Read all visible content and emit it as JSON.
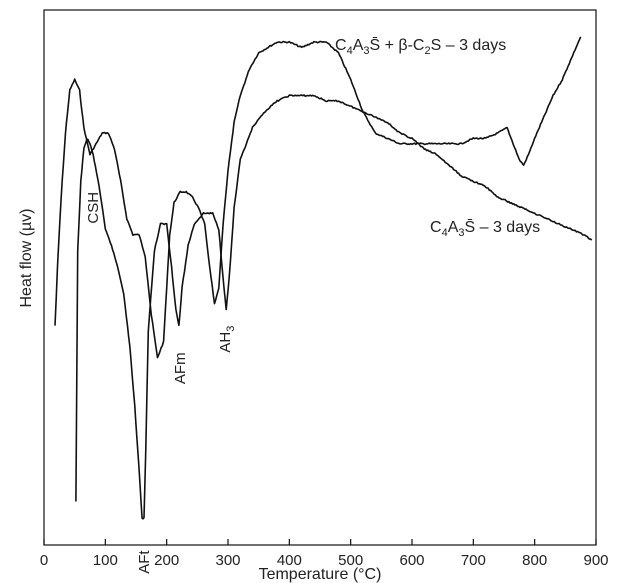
{
  "chart_data": {
    "type": "line",
    "title": "",
    "xlabel": "Temperature (°C)",
    "ylabel": "Heat flow (µv)",
    "xlim": [
      0,
      900
    ],
    "ylim": [
      0,
      100
    ],
    "x_ticks": [
      0,
      100,
      200,
      300,
      400,
      500,
      600,
      700,
      800,
      900
    ],
    "grid": false,
    "legend": "none",
    "series": [
      {
        "name": "C₄A₃S̄ + β-C₂S – 3 days",
        "label_parts": {
          "pre": "C",
          "s1": "4",
          "a": "A",
          "s2": "3",
          "sbar": "S̄",
          "mid": " + β-C",
          "s3": "2",
          "post": "S – 3 days"
        },
        "x": [
          18,
          22,
          28,
          35,
          42,
          50,
          58,
          65,
          75,
          85,
          95,
          105,
          115,
          125,
          135,
          145,
          155,
          165,
          175,
          185,
          195,
          200,
          205,
          212,
          222,
          232,
          242,
          252,
          262,
          270,
          278,
          285,
          292,
          300,
          310,
          320,
          335,
          350,
          365,
          380,
          400,
          420,
          440,
          460,
          480,
          500,
          520,
          540,
          560,
          580,
          600,
          620,
          640,
          660,
          680,
          700,
          720,
          740,
          755,
          765,
          775,
          782,
          790,
          800,
          815,
          830,
          845,
          860,
          875
        ],
        "y": [
          41,
          52,
          65,
          77,
          85,
          87,
          85,
          78,
          73,
          75,
          77,
          77,
          74,
          68,
          61,
          58,
          58,
          54,
          43,
          35,
          38,
          48,
          58,
          64,
          66,
          66,
          65,
          63,
          60,
          52,
          45,
          48,
          60,
          70,
          79,
          84,
          89,
          92,
          93,
          94,
          94,
          93,
          94,
          94,
          92,
          87,
          81,
          77,
          76,
          75,
          75,
          75,
          75,
          75,
          75,
          76,
          76,
          77,
          78,
          75,
          72,
          71,
          73,
          76,
          80,
          84,
          87,
          91,
          95
        ]
      },
      {
        "name": "C₄A₃S̄ – 3 days",
        "label_parts": {
          "pre": "C",
          "s1": "4",
          "a": "A",
          "s2": "3",
          "sbar": "S̄",
          "post": " – 3 days"
        },
        "x": [
          52,
          55,
          60,
          65,
          70,
          75,
          80,
          90,
          100,
          110,
          120,
          130,
          140,
          148,
          155,
          160,
          163,
          166,
          170,
          180,
          190,
          200,
          208,
          215,
          220,
          225,
          235,
          245,
          260,
          275,
          285,
          292,
          297,
          302,
          310,
          320,
          340,
          360,
          380,
          400,
          420,
          440,
          460,
          480,
          500,
          520,
          540,
          560,
          580,
          600,
          620,
          640,
          660,
          680,
          700,
          720,
          740,
          760,
          780,
          800,
          820,
          840,
          860,
          880,
          893
        ],
        "y": [
          8,
          55,
          68,
          74,
          76,
          75,
          73,
          67,
          59,
          56,
          52,
          47,
          37,
          26,
          14,
          5,
          5,
          18,
          40,
          55,
          60,
          60,
          52,
          44,
          41,
          48,
          56,
          60,
          62,
          62,
          59,
          50,
          44,
          50,
          63,
          72,
          78,
          81,
          83,
          84,
          84,
          84,
          83,
          83,
          82,
          81,
          80,
          79,
          77,
          76,
          74,
          73,
          71,
          69,
          68,
          67,
          65,
          64,
          63,
          62,
          61,
          60,
          59,
          58,
          57
        ]
      }
    ],
    "annotations": [
      {
        "text": "CSH",
        "x": 80,
        "y": 66
      },
      {
        "text": "AFm",
        "x": 222,
        "y": 36
      },
      {
        "text": "AH",
        "sub": "3",
        "x": 295,
        "y": 41
      },
      {
        "text": "AFt",
        "x": 163,
        "y": -1
      }
    ]
  }
}
